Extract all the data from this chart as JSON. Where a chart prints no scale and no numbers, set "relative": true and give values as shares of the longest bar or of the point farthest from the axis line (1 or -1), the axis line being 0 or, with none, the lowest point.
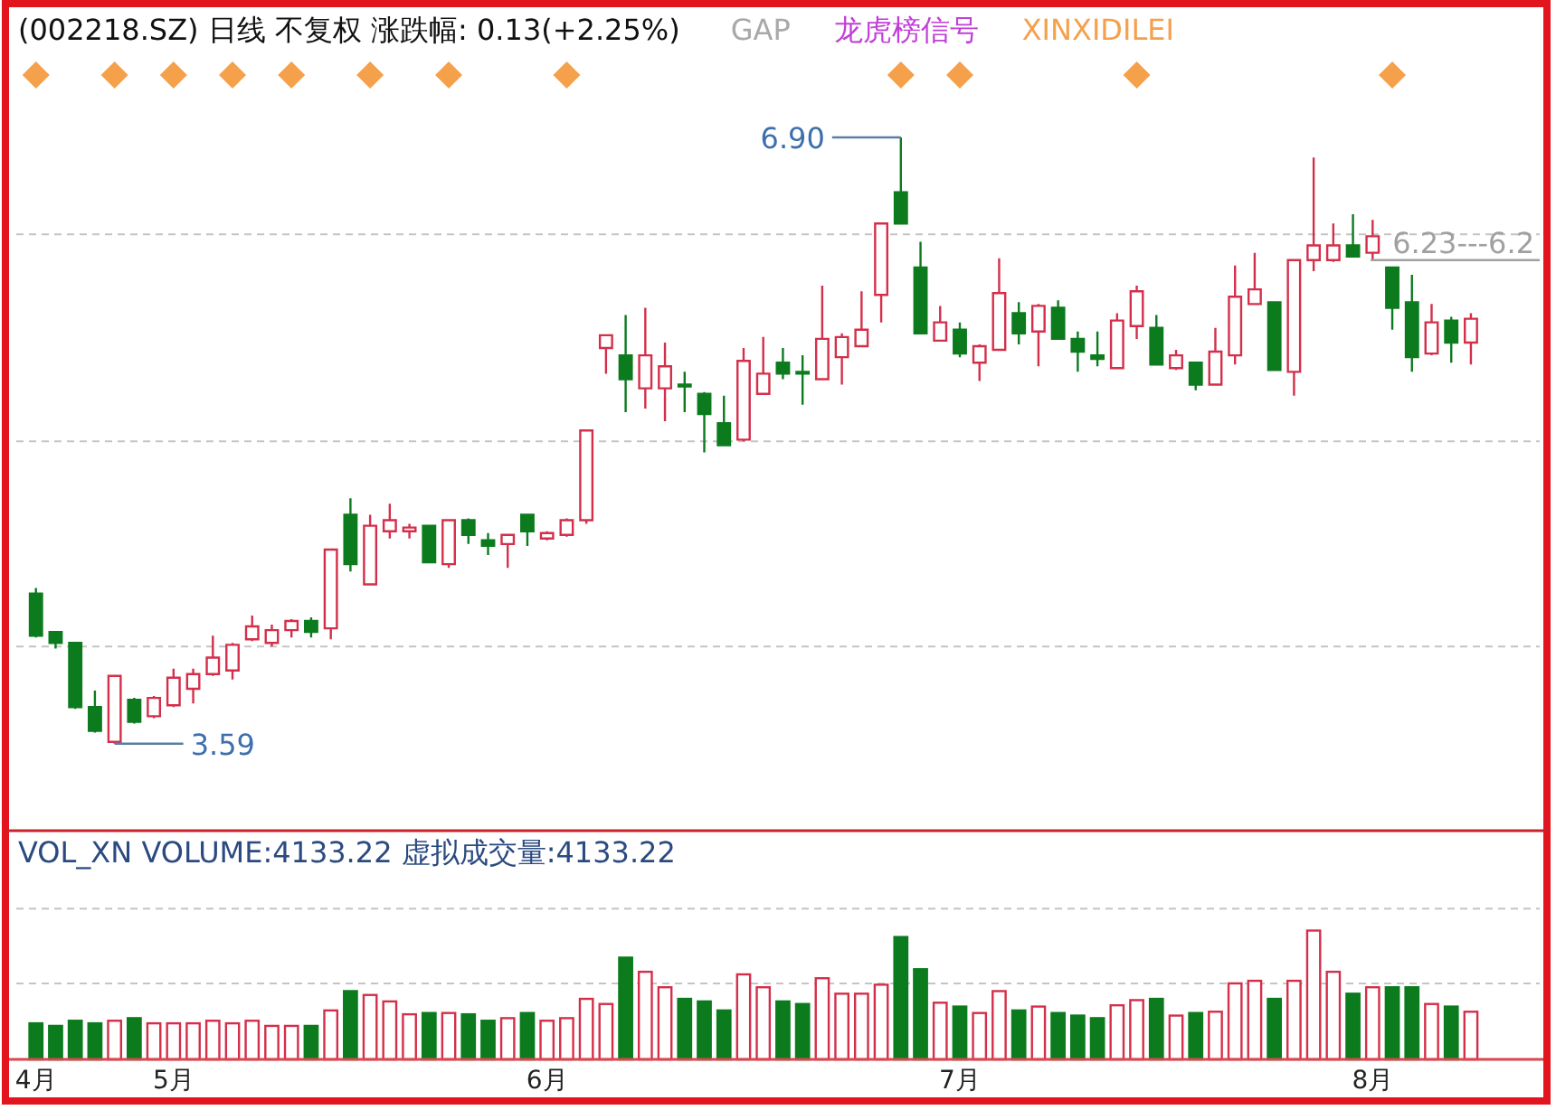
{
  "chart_data": [
    {
      "type": "candlestick",
      "title": "(002218.SZ)  日线  不复权  涨跌幅: 0.13(+2.25%)",
      "annotations": [
        "GAP",
        "龙虎榜信号"
      ],
      "categories": [
        null,
        null,
        null,
        null,
        null,
        null,
        null,
        null,
        null,
        null,
        null,
        null,
        null,
        null,
        null,
        null,
        null,
        null,
        null,
        null,
        null,
        null,
        null,
        null,
        null,
        null,
        null,
        null,
        null,
        null,
        null,
        null,
        null,
        null,
        null,
        null,
        null,
        null,
        null,
        null,
        null,
        null,
        null,
        null,
        null,
        null,
        null,
        null,
        null,
        null,
        null,
        null,
        null,
        null,
        null,
        null,
        null,
        null,
        null,
        null,
        null,
        null,
        null,
        null,
        null,
        null,
        null,
        null,
        null,
        null,
        null,
        null,
        null,
        null
      ],
      "ohlc": [
        [
          4.41,
          4.44,
          4.17,
          4.18
        ],
        [
          4.2,
          4.2,
          4.11,
          4.14
        ],
        [
          4.14,
          4.14,
          3.78,
          3.79
        ],
        [
          3.79,
          3.88,
          3.65,
          3.66
        ],
        [
          3.6,
          3.96,
          3.59,
          3.96
        ],
        [
          3.83,
          3.84,
          3.7,
          3.71
        ],
        [
          3.74,
          3.85,
          3.73,
          3.84
        ],
        [
          3.8,
          4.0,
          3.79,
          3.95
        ],
        [
          3.89,
          4.0,
          3.81,
          3.97
        ],
        [
          3.97,
          4.18,
          3.96,
          4.06
        ],
        [
          3.99,
          4.14,
          3.94,
          4.13
        ],
        [
          4.16,
          4.29,
          4.15,
          4.23
        ],
        [
          4.14,
          4.24,
          4.12,
          4.21
        ],
        [
          4.21,
          4.27,
          4.17,
          4.26
        ],
        [
          4.26,
          4.28,
          4.17,
          4.2
        ],
        [
          4.22,
          4.65,
          4.16,
          4.65
        ],
        [
          4.84,
          4.93,
          4.53,
          4.57
        ],
        [
          4.46,
          4.84,
          4.46,
          4.78
        ],
        [
          4.75,
          4.9,
          4.71,
          4.81
        ],
        [
          4.75,
          4.79,
          4.71,
          4.77
        ],
        [
          4.78,
          4.78,
          4.58,
          4.58
        ],
        [
          4.57,
          4.81,
          4.55,
          4.81
        ],
        [
          4.81,
          4.82,
          4.68,
          4.73
        ],
        [
          4.7,
          4.74,
          4.62,
          4.67
        ],
        [
          4.68,
          4.73,
          4.55,
          4.73
        ],
        [
          4.84,
          4.84,
          4.67,
          4.75
        ],
        [
          4.71,
          4.75,
          4.7,
          4.74
        ],
        [
          4.73,
          4.82,
          4.72,
          4.81
        ],
        [
          4.81,
          5.3,
          4.79,
          5.3
        ],
        [
          5.75,
          5.82,
          5.61,
          5.82
        ],
        [
          5.71,
          5.93,
          5.4,
          5.58
        ],
        [
          5.53,
          5.97,
          5.42,
          5.71
        ],
        [
          5.53,
          5.78,
          5.35,
          5.65
        ],
        [
          5.55,
          5.62,
          5.4,
          5.54
        ],
        [
          5.5,
          5.51,
          5.18,
          5.39
        ],
        [
          5.34,
          5.49,
          5.22,
          5.22
        ],
        [
          5.25,
          5.75,
          5.24,
          5.68
        ],
        [
          5.5,
          5.81,
          5.5,
          5.61
        ],
        [
          5.67,
          5.75,
          5.58,
          5.61
        ],
        [
          5.62,
          5.71,
          5.44,
          5.61
        ],
        [
          5.58,
          6.09,
          5.58,
          5.8
        ],
        [
          5.7,
          5.83,
          5.55,
          5.81
        ],
        [
          5.76,
          6.06,
          5.76,
          5.85
        ],
        [
          6.04,
          6.43,
          5.89,
          6.43
        ],
        [
          6.6,
          6.9,
          6.43,
          6.43
        ],
        [
          6.19,
          6.33,
          5.83,
          5.83
        ],
        [
          5.79,
          5.98,
          5.79,
          5.89
        ],
        [
          5.85,
          5.89,
          5.7,
          5.72
        ],
        [
          5.67,
          5.77,
          5.57,
          5.76
        ],
        [
          5.74,
          6.24,
          5.74,
          6.05
        ],
        [
          5.94,
          6.0,
          5.77,
          5.83
        ],
        [
          5.84,
          5.99,
          5.65,
          5.98
        ],
        [
          5.97,
          6.01,
          5.8,
          5.8
        ],
        [
          5.8,
          5.84,
          5.62,
          5.73
        ],
        [
          5.71,
          5.84,
          5.65,
          5.69
        ],
        [
          5.64,
          5.94,
          5.64,
          5.9
        ],
        [
          5.87,
          6.09,
          5.8,
          6.06
        ],
        [
          5.86,
          5.93,
          5.66,
          5.66
        ],
        [
          5.64,
          5.74,
          5.63,
          5.71
        ],
        [
          5.67,
          5.67,
          5.52,
          5.55
        ],
        [
          5.55,
          5.86,
          5.55,
          5.73
        ],
        [
          5.71,
          6.2,
          5.66,
          6.03
        ],
        [
          5.99,
          6.27,
          5.99,
          6.07
        ],
        [
          6.0,
          6.0,
          5.63,
          5.63
        ],
        [
          5.62,
          6.23,
          5.49,
          6.23
        ],
        [
          6.23,
          6.79,
          6.17,
          6.31
        ],
        [
          6.23,
          6.43,
          6.22,
          6.31
        ],
        [
          6.31,
          6.48,
          6.25,
          6.25
        ],
        [
          6.27,
          6.45,
          6.23,
          6.36
        ],
        [
          6.19,
          6.19,
          5.85,
          5.97
        ],
        [
          6.0,
          6.15,
          5.62,
          5.7
        ],
        [
          5.72,
          5.99,
          5.71,
          5.89
        ],
        [
          5.9,
          5.92,
          5.67,
          5.78
        ],
        [
          5.78,
          5.94,
          5.66,
          5.91
        ]
      ],
      "value_labels": [
        null,
        null,
        null,
        null,
        "3.59",
        null,
        null,
        null,
        null,
        null,
        null,
        null,
        null,
        null,
        null,
        null,
        null,
        null,
        null,
        null,
        null,
        null,
        null,
        null,
        null,
        null,
        null,
        null,
        null,
        null,
        null,
        null,
        null,
        null,
        null,
        null,
        null,
        null,
        null,
        null,
        null,
        null,
        null,
        null,
        "6.90",
        null,
        null,
        null,
        null,
        null,
        null,
        null,
        null,
        null,
        null,
        null,
        null,
        null,
        null,
        null,
        null,
        null,
        null,
        null,
        null,
        null,
        null,
        null,
        null,
        null,
        null,
        null,
        null,
        null
      ],
      "colors": [
        "#0c7b1e",
        "#0c7b1e",
        "#0c7b1e",
        "#0c7b1e",
        "#d42f4a",
        "#0c7b1e",
        "#d42f4a",
        "#d42f4a",
        "#d42f4a",
        "#d42f4a",
        "#d42f4a",
        "#d42f4a",
        "#d42f4a",
        "#d42f4a",
        "#0c7b1e",
        "#d42f4a",
        "#0c7b1e",
        "#d42f4a",
        "#d42f4a",
        "#d42f4a",
        "#0c7b1e",
        "#d42f4a",
        "#0c7b1e",
        "#0c7b1e",
        "#d42f4a",
        "#0c7b1e",
        "#d42f4a",
        "#d42f4a",
        "#d42f4a",
        "#d42f4a",
        "#0c7b1e",
        "#d42f4a",
        "#d42f4a",
        "#0c7b1e",
        "#0c7b1e",
        "#0c7b1e",
        "#d42f4a",
        "#d42f4a",
        "#0c7b1e",
        "#0c7b1e",
        "#d42f4a",
        "#d42f4a",
        "#d42f4a",
        "#d42f4a",
        "#0c7b1e",
        "#0c7b1e",
        "#d42f4a",
        "#0c7b1e",
        "#d42f4a",
        "#d42f4a",
        "#0c7b1e",
        "#d42f4a",
        "#0c7b1e",
        "#0c7b1e",
        "#0c7b1e",
        "#d42f4a",
        "#d42f4a",
        "#0c7b1e",
        "#d42f4a",
        "#0c7b1e",
        "#d42f4a",
        "#d42f4a",
        "#d42f4a",
        "#0c7b1e",
        "#d42f4a",
        "#d42f4a",
        "#d42f4a",
        "#0c7b1e",
        "#d42f4a",
        "#0c7b1e",
        "#0c7b1e",
        "#d42f4a",
        "#0c7b1e",
        "#d42f4a"
      ],
      "series": [
        {
          "name": "XINXIDILEI",
          "type": "scatter",
          "color": "#f5a04a",
          "values": [
            7.24,
            null,
            null,
            null,
            7.24,
            null,
            null,
            7.24,
            null,
            null,
            7.24,
            null,
            null,
            7.24,
            null,
            null,
            null,
            7.24,
            null,
            null,
            null,
            7.24,
            null,
            null,
            null,
            null,
            null,
            7.24,
            null,
            null,
            null,
            null,
            null,
            null,
            null,
            null,
            null,
            null,
            null,
            null,
            null,
            null,
            null,
            null,
            7.24,
            null,
            null,
            7.24,
            null,
            null,
            null,
            null,
            null,
            null,
            null,
            null,
            7.24,
            null,
            null,
            null,
            null,
            null,
            null,
            null,
            null,
            null,
            null,
            null,
            null,
            7.24,
            null,
            null,
            null,
            null
          ]
        }
      ],
      "marker": "diamond",
      "legend": "top",
      "ylim": [
        3.13,
        7.63
      ],
      "yticks": [
        {
          "value": 4.12,
          "label": null
        },
        {
          "value": 5.24,
          "label": null
        },
        {
          "value": 6.37,
          "label": null
        }
      ],
      "grid": "y",
      "ref_lines": [
        {
          "axis": "y",
          "value": 6.23,
          "label": "6.23---6.2",
          "color": "#a0a0a0"
        }
      ],
      "tick_labels": false
    },
    {
      "type": "bar",
      "title": "VOL_XN  VOLUME:4133.22  虚拟成交量:4133.22",
      "categories": [
        "4月",
        null,
        null,
        null,
        null,
        null,
        null,
        "5月",
        null,
        null,
        null,
        null,
        null,
        null,
        null,
        null,
        null,
        null,
        null,
        null,
        null,
        null,
        null,
        null,
        null,
        null,
        "6月",
        null,
        null,
        null,
        null,
        null,
        null,
        null,
        null,
        null,
        null,
        null,
        null,
        null,
        null,
        null,
        null,
        null,
        null,
        null,
        null,
        "7月",
        null,
        null,
        null,
        null,
        null,
        null,
        null,
        null,
        null,
        null,
        null,
        null,
        null,
        null,
        null,
        null,
        null,
        null,
        null,
        null,
        "8月",
        null,
        null,
        null,
        null,
        null
      ],
      "values": [
        0.28,
        0.26,
        0.3,
        0.28,
        0.3,
        0.32,
        0.28,
        0.28,
        0.28,
        0.3,
        0.28,
        0.3,
        0.26,
        0.26,
        0.26,
        0.38,
        0.53,
        0.5,
        0.45,
        0.35,
        0.36,
        0.36,
        0.35,
        0.3,
        0.32,
        0.36,
        0.3,
        0.32,
        0.47,
        0.43,
        0.79,
        0.68,
        0.56,
        0.47,
        0.45,
        0.38,
        0.66,
        0.56,
        0.45,
        0.43,
        0.63,
        0.51,
        0.51,
        0.58,
        0.95,
        0.7,
        0.44,
        0.41,
        0.36,
        0.53,
        0.38,
        0.41,
        0.36,
        0.34,
        0.32,
        0.42,
        0.46,
        0.47,
        0.34,
        0.36,
        0.37,
        0.59,
        0.61,
        0.47,
        0.61,
        1,
        0.68,
        0.51,
        0.56,
        0.56,
        0.56,
        0.43,
        0.41,
        0.37
      ],
      "relative": true,
      "colors": [
        "#0c7b1e",
        "#0c7b1e",
        "#0c7b1e",
        "#0c7b1e",
        "#d42f4a",
        "#0c7b1e",
        "#d42f4a",
        "#d42f4a",
        "#d42f4a",
        "#d42f4a",
        "#d42f4a",
        "#d42f4a",
        "#d42f4a",
        "#d42f4a",
        "#0c7b1e",
        "#d42f4a",
        "#0c7b1e",
        "#d42f4a",
        "#d42f4a",
        "#d42f4a",
        "#0c7b1e",
        "#d42f4a",
        "#0c7b1e",
        "#0c7b1e",
        "#d42f4a",
        "#0c7b1e",
        "#d42f4a",
        "#d42f4a",
        "#d42f4a",
        "#d42f4a",
        "#0c7b1e",
        "#d42f4a",
        "#d42f4a",
        "#0c7b1e",
        "#0c7b1e",
        "#0c7b1e",
        "#d42f4a",
        "#d42f4a",
        "#0c7b1e",
        "#0c7b1e",
        "#d42f4a",
        "#d42f4a",
        "#d42f4a",
        "#d42f4a",
        "#0c7b1e",
        "#0c7b1e",
        "#d42f4a",
        "#0c7b1e",
        "#d42f4a",
        "#d42f4a",
        "#0c7b1e",
        "#d42f4a",
        "#0c7b1e",
        "#0c7b1e",
        "#0c7b1e",
        "#d42f4a",
        "#d42f4a",
        "#0c7b1e",
        "#d42f4a",
        "#0c7b1e",
        "#d42f4a",
        "#d42f4a",
        "#d42f4a",
        "#0c7b1e",
        "#d42f4a",
        "#d42f4a",
        "#d42f4a",
        "#0c7b1e",
        "#d42f4a",
        "#0c7b1e",
        "#0c7b1e",
        "#d42f4a",
        "#0c7b1e",
        "#d42f4a"
      ],
      "ref_lines": [
        {
          "axis": "y",
          "value": 0.59,
          "color": "#c4c4c4",
          "line_style": "dashed"
        },
        {
          "axis": "y",
          "value": 1.17,
          "color": "#c4c4c4",
          "line_style": "dashed"
        }
      ],
      "tick_labels": "x"
    }
  ]
}
